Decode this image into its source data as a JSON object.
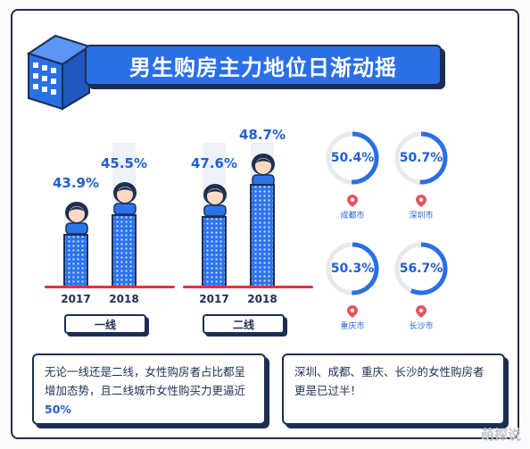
{
  "title": "男生购房主力地位日渐动摇",
  "tiers": [
    {
      "label": "一线",
      "years": [
        "2017",
        "2018"
      ],
      "values": [
        "43.9%",
        "45.5%"
      ]
    },
    {
      "label": "二线",
      "years": [
        "2017",
        "2018"
      ],
      "values": [
        "47.6%",
        "48.7%"
      ]
    }
  ],
  "cities": [
    {
      "name": "成都市",
      "value": "50.4%",
      "fraction": 0.504
    },
    {
      "name": "深圳市",
      "value": "50.7%",
      "fraction": 0.507
    },
    {
      "name": "重庆市",
      "value": "50.3%",
      "fraction": 0.503
    },
    {
      "name": "长沙市",
      "value": "56.7%",
      "fraction": 0.567
    }
  ],
  "notes": {
    "left_text": "无论一线还是二线，女性购房者占比都呈增加态势，且二线城市女性购买力更逼近 ",
    "left_emphasis": "50%",
    "right_text": "深圳、成都、重庆、长沙的女性购房者更是已过半！"
  },
  "watermark": "萌探说",
  "colors": {
    "accent": "#2b6fe6",
    "outline": "#1c2f52",
    "baseline": "#e3313d",
    "pin": "#e5535e"
  }
}
